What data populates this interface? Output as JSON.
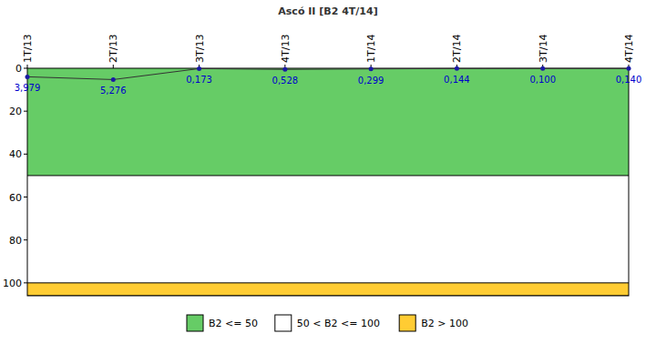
{
  "chart_data": {
    "type": "line",
    "title": "Ascó II [B2 4T/14]",
    "categories": [
      "1T/13",
      "2T/13",
      "3T/13",
      "4T/13",
      "1T/14",
      "2T/14",
      "3T/14",
      "4T/14"
    ],
    "series": [
      {
        "name": "B2",
        "color": "#333333",
        "marker": "circle",
        "values": [
          3.979,
          5.276,
          0.173,
          0.528,
          0.299,
          0.144,
          0.1,
          0.14
        ],
        "value_labels": [
          "3,979",
          "5,276",
          "0,173",
          "0,528",
          "0,299",
          "0,144",
          "0,100",
          "0,140"
        ]
      }
    ],
    "ylim": [
      106,
      0
    ],
    "yticks": [
      0,
      20,
      40,
      60,
      80,
      100
    ],
    "grid": false,
    "data_labels": true,
    "legend": "bottom",
    "bands": [
      {
        "name": "B2 <= 50",
        "from": 0,
        "to": 50,
        "color": "#66cc66"
      },
      {
        "name": "50 < B2 <= 100",
        "from": 50,
        "to": 100,
        "color": "#ffffff"
      },
      {
        "name": "B2 > 100",
        "from": 100,
        "to": 106,
        "color": "#ffcc33"
      }
    ]
  }
}
